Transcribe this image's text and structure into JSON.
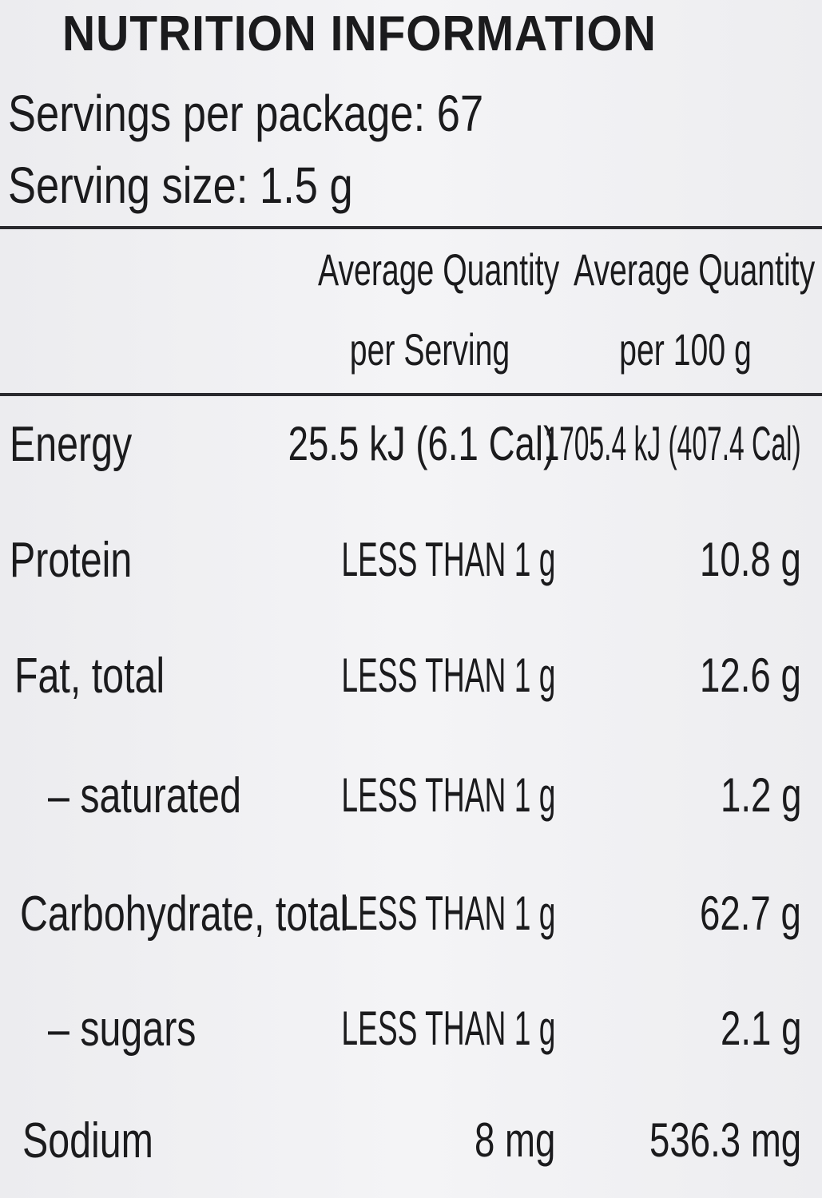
{
  "header": {
    "title": "NUTRITION INFORMATION",
    "servings_per_package": "Servings per package: 67",
    "serving_size": "Serving size: 1.5 g"
  },
  "table": {
    "columns": [
      [
        "Average Quantity",
        "per Serving"
      ],
      [
        "Average Quantity",
        "per 100 g"
      ]
    ],
    "rows": [
      [
        "Energy",
        "25.5 kJ (6.1 Cal)",
        "1705.4 kJ (407.4 Cal)"
      ],
      [
        "Protein",
        "LESS THAN 1 g",
        "10.8 g"
      ],
      [
        "Fat, total",
        "LESS THAN 1 g",
        "12.6 g"
      ],
      [
        "– saturated",
        "LESS THAN 1 g",
        "1.2 g"
      ],
      [
        "Carbohydrate, total",
        "LESS THAN 1 g",
        "62.7 g"
      ],
      [
        "– sugars",
        "LESS THAN 1 g",
        "2.1 g"
      ],
      [
        "Sodium",
        "8 mg",
        "536.3 mg"
      ]
    ]
  }
}
